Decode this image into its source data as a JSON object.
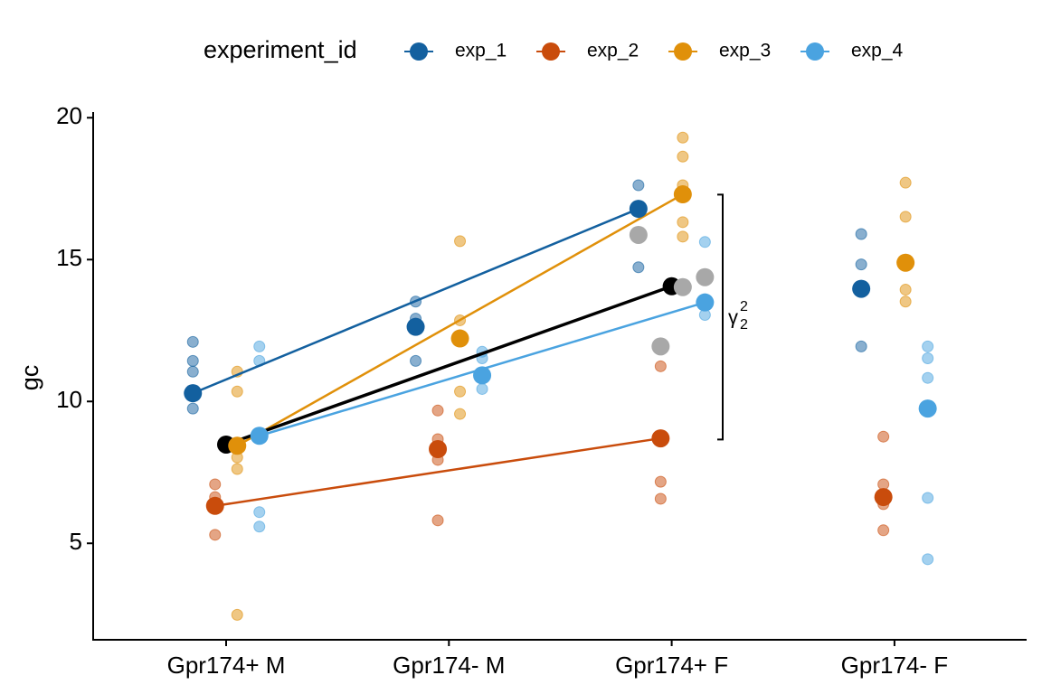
{
  "chart_data": {
    "type": "dot",
    "legend_title": "experiment_id",
    "y_label": "gc",
    "categories": [
      "Gpr174+ M",
      "Gpr174- M",
      "Gpr174+ F",
      "Gpr174- F"
    ],
    "ylim": [
      1.6,
      20.2
    ],
    "yticks": [
      5,
      10,
      15,
      20
    ],
    "grid": false,
    "series": [
      {
        "name": "exp_1",
        "color": "#13609f",
        "means": [
          10.29,
          12.63,
          16.79,
          13.97
        ],
        "raw": [
          [
            12.1,
            11.43,
            11.05,
            9.75
          ],
          [
            13.52,
            12.92,
            11.43
          ],
          [
            17.62,
            14.73
          ],
          [
            15.9,
            14.83,
            11.94
          ]
        ],
        "predicted": [
          null,
          null,
          15.87,
          null
        ]
      },
      {
        "name": "exp_2",
        "color": "#c94c0c",
        "means": [
          6.32,
          8.32,
          8.7,
          6.63
        ],
        "raw": [
          [
            7.08,
            6.63,
            5.3
          ],
          [
            9.68,
            8.67,
            7.94,
            5.81
          ],
          [
            11.24,
            7.17,
            6.57
          ],
          [
            8.76,
            7.08,
            6.38,
            5.46
          ]
        ],
        "predicted": [
          null,
          null,
          11.94,
          null
        ]
      },
      {
        "name": "exp_3",
        "color": "#e0900a",
        "means": [
          8.44,
          12.22,
          17.3,
          14.89
        ],
        "raw": [
          [
            11.05,
            10.35,
            8.03,
            7.62,
            2.48
          ],
          [
            15.65,
            12.86,
            10.35,
            9.56
          ],
          [
            19.3,
            18.63,
            17.62,
            16.32,
            15.81
          ],
          [
            17.71,
            16.51,
            13.94,
            13.52
          ]
        ],
        "predicted": [
          null,
          null,
          14.03,
          null
        ]
      },
      {
        "name": "exp_4",
        "color": "#4aa3e0",
        "means": [
          8.79,
          10.92,
          13.49,
          9.75
        ],
        "raw": [
          [
            11.94,
            11.43,
            6.1,
            5.59
          ],
          [
            11.75,
            11.52,
            10.44
          ],
          [
            15.62,
            13.05
          ],
          [
            11.94,
            11.52,
            10.83,
            6.6,
            4.44
          ]
        ],
        "predicted": [
          null,
          null,
          14.38,
          null
        ]
      }
    ],
    "overall": {
      "color": "#000000",
      "values": [
        8.48,
        null,
        14.06,
        null
      ]
    },
    "predicted_color": "#a8a8a8",
    "bracket": {
      "range": [
        8.66,
        17.29
      ],
      "label": "γ",
      "sub": "2",
      "sup": "2"
    }
  }
}
